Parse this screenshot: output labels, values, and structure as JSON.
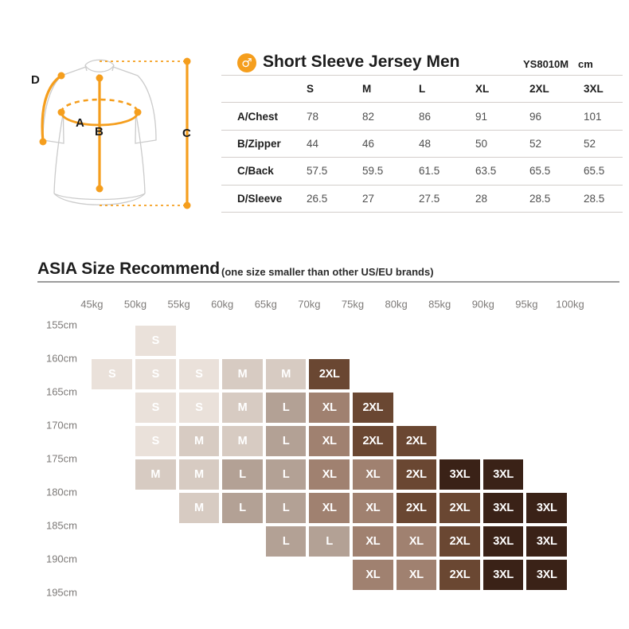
{
  "header": {
    "gender_symbol": "♂",
    "title": "Short Sleeve Jersey Men",
    "model": "YS8010M",
    "unit": "cm",
    "accent_color": "#F59E1D"
  },
  "diagram": {
    "labels": {
      "A": "A",
      "B": "B",
      "C": "C",
      "D": "D"
    },
    "accent_color": "#F59E1D",
    "outline_color": "#cbcbcb"
  },
  "size_table": {
    "columns": [
      "S",
      "M",
      "L",
      "XL",
      "2XL",
      "3XL"
    ],
    "rows": [
      {
        "label": "A/Chest",
        "values": [
          "78",
          "82",
          "86",
          "91",
          "96",
          "101"
        ]
      },
      {
        "label": "B/Zipper",
        "values": [
          "44",
          "46",
          "48",
          "50",
          "52",
          "52"
        ]
      },
      {
        "label": "C/Back",
        "values": [
          "57.5",
          "59.5",
          "61.5",
          "63.5",
          "65.5",
          "65.5"
        ]
      },
      {
        "label": "D/Sleeve",
        "values": [
          "26.5",
          "27",
          "27.5",
          "28",
          "28.5",
          "28.5"
        ]
      }
    ]
  },
  "recommend": {
    "title": "ASIA Size Recommend",
    "subtitle": "(one size smaller than other US/EU brands)"
  },
  "chart_data": {
    "type": "heatmap",
    "title": "ASIA Size Recommend",
    "subtitle": "(one size smaller than other US/EU brands)",
    "x_labels": [
      "45kg",
      "50kg",
      "55kg",
      "60kg",
      "65kg",
      "70kg",
      "75kg",
      "80kg",
      "85kg",
      "90kg",
      "95kg",
      "100kg"
    ],
    "y_labels": [
      "155cm",
      "160cm",
      "165cm",
      "170cm",
      "175cm",
      "180cm",
      "185cm",
      "190cm",
      "195cm"
    ],
    "cell_placement": "each cell spans the band between two consecutive weight labels (columns) and two consecutive height labels (rows)",
    "rows": [
      [
        "",
        "S",
        "",
        "",
        "",
        "",
        "",
        "",
        "",
        "",
        ""
      ],
      [
        "S",
        "S",
        "S",
        "M",
        "M",
        "2XL",
        "",
        "",
        "",
        "",
        ""
      ],
      [
        "",
        "S",
        "S",
        "M",
        "L",
        "XL",
        "2XL",
        "",
        "",
        "",
        ""
      ],
      [
        "",
        "S",
        "M",
        "M",
        "L",
        "XL",
        "2XL",
        "2XL",
        "",
        "",
        ""
      ],
      [
        "",
        "M",
        "M",
        "L",
        "L",
        "XL",
        "XL",
        "2XL",
        "3XL",
        "3XL",
        ""
      ],
      [
        "",
        "",
        "M",
        "L",
        "L",
        "XL",
        "XL",
        "2XL",
        "2XL",
        "3XL",
        "3XL"
      ],
      [
        "",
        "",
        "",
        "",
        "L",
        "L",
        "XL",
        "XL",
        "2XL",
        "3XL",
        "3XL"
      ],
      [
        "",
        "",
        "",
        "",
        "",
        "",
        "XL",
        "XL",
        "2XL",
        "3XL",
        "3XL"
      ]
    ],
    "size_colors": {
      "S": "#EAE1DA",
      "M": "#D7CBC2",
      "L": "#B3A195",
      "XL": "#A08170",
      "2XL": "#6A4732",
      "3XL": "#3A2217"
    },
    "cell_text_color": "#ffffff",
    "axis_label_color": "#7d7a78",
    "grid": "off",
    "legend_position": "none"
  }
}
